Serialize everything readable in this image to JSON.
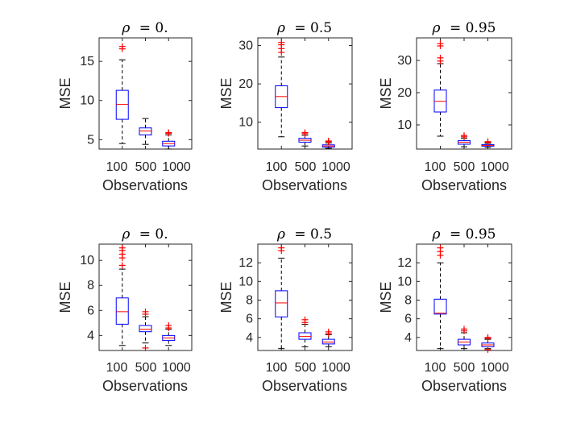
{
  "figure": {
    "colors": {
      "box": "#0000ff",
      "median": "#ff0000",
      "whisker": "#000000",
      "outlier": "#ff0000",
      "axes": "#262626"
    }
  },
  "chart_data": [
    {
      "type": "box",
      "title": "ρ = 0.",
      "title_symbol": "ρ",
      "title_value": "= 0.",
      "xlabel": "Observations",
      "ylabel": "MSE",
      "categories": [
        "100",
        "500",
        "1000"
      ],
      "ylim": [
        3.8,
        18
      ],
      "yticks": [
        5,
        10,
        15
      ],
      "grid": false,
      "boxes": [
        {
          "q1": 7.6,
          "median": 9.5,
          "q3": 11.3,
          "whisker_low": 4.5,
          "whisker_high": 15.2,
          "outliers": [
            16.6,
            16.9
          ]
        },
        {
          "q1": 5.6,
          "median": 6.1,
          "q3": 6.5,
          "whisker_low": 4.4,
          "whisker_high": 7.7,
          "outliers": []
        },
        {
          "q1": 4.2,
          "median": 4.5,
          "q3": 4.8,
          "whisker_low": 3.8,
          "whisker_high": 5.6,
          "outliers": [
            5.8,
            5.9
          ]
        }
      ]
    },
    {
      "type": "box",
      "title": "ρ = 0.5",
      "title_symbol": "ρ",
      "title_value": "= 0.5",
      "xlabel": "Observations",
      "ylabel": "MSE",
      "categories": [
        "100",
        "500",
        "1000"
      ],
      "ylim": [
        3,
        32
      ],
      "yticks": [
        10,
        20,
        30
      ],
      "grid": false,
      "boxes": [
        {
          "q1": 13.8,
          "median": 16.7,
          "q3": 19.5,
          "whisker_low": 6.2,
          "whisker_high": 27.0,
          "outliers": [
            28.2,
            29.2,
            30.2,
            30.8
          ]
        },
        {
          "q1": 4.8,
          "median": 5.3,
          "q3": 5.8,
          "whisker_low": 3.8,
          "whisker_high": 6.6,
          "outliers": [
            7.0,
            7.3
          ]
        },
        {
          "q1": 3.5,
          "median": 3.8,
          "q3": 4.1,
          "whisker_low": 3.2,
          "whisker_high": 4.6,
          "outliers": [
            4.9,
            5.1
          ]
        }
      ]
    },
    {
      "type": "box",
      "title": "ρ = 0.95",
      "title_symbol": "ρ",
      "title_value": "= 0.95",
      "xlabel": "Observations",
      "ylabel": "MSE",
      "categories": [
        "100",
        "500",
        "1000"
      ],
      "ylim": [
        2.5,
        37
      ],
      "yticks": [
        10,
        20,
        30
      ],
      "grid": false,
      "boxes": [
        {
          "q1": 14.0,
          "median": 17.3,
          "q3": 20.8,
          "whisker_low": 6.5,
          "whisker_high": 29.0,
          "outliers": [
            29.8,
            30.8,
            34.5,
            35.2
          ]
        },
        {
          "q1": 4.0,
          "median": 4.6,
          "q3": 5.1,
          "whisker_low": 3.2,
          "whisker_high": 5.9,
          "outliers": [
            6.3,
            6.7
          ]
        },
        {
          "q1": 3.4,
          "median": 3.6,
          "q3": 3.9,
          "whisker_low": 3.0,
          "whisker_high": 4.3,
          "outliers": [
            4.6,
            4.8
          ]
        }
      ]
    },
    {
      "type": "box",
      "title": "ρ = 0.",
      "title_symbol": "ρ",
      "title_value": "= 0.",
      "xlabel": "Observations",
      "ylabel": "MSE",
      "categories": [
        "100",
        "500",
        "1000"
      ],
      "ylim": [
        2.8,
        11.3
      ],
      "yticks": [
        4,
        6,
        8,
        10
      ],
      "grid": false,
      "boxes": [
        {
          "q1": 4.9,
          "median": 5.9,
          "q3": 7.0,
          "whisker_low": 3.2,
          "whisker_high": 9.3,
          "outliers": [
            9.6,
            10.2,
            10.5,
            10.8,
            11.0
          ]
        },
        {
          "q1": 4.3,
          "median": 4.5,
          "q3": 4.8,
          "whisker_low": 3.4,
          "whisker_high": 5.5,
          "outliers": [
            3.0,
            5.7,
            5.9
          ]
        },
        {
          "q1": 3.6,
          "median": 3.8,
          "q3": 4.0,
          "whisker_low": 3.2,
          "whisker_high": 4.5,
          "outliers": [
            4.6,
            4.8
          ]
        }
      ]
    },
    {
      "type": "box",
      "title": "ρ = 0.5",
      "title_symbol": "ρ",
      "title_value": "= 0.5",
      "xlabel": "Observations",
      "ylabel": "MSE",
      "categories": [
        "100",
        "500",
        "1000"
      ],
      "ylim": [
        2.6,
        14
      ],
      "yticks": [
        4,
        6,
        8,
        10,
        12
      ],
      "grid": false,
      "boxes": [
        {
          "q1": 6.2,
          "median": 7.7,
          "q3": 9.0,
          "whisker_low": 2.8,
          "whisker_high": 12.5,
          "outliers": [
            13.3,
            13.6
          ]
        },
        {
          "q1": 3.8,
          "median": 4.1,
          "q3": 4.5,
          "whisker_low": 3.0,
          "whisker_high": 5.4,
          "outliers": [
            5.6,
            5.9
          ]
        },
        {
          "q1": 3.3,
          "median": 3.5,
          "q3": 3.8,
          "whisker_low": 3.0,
          "whisker_high": 4.3,
          "outliers": [
            4.4,
            4.6
          ]
        }
      ]
    },
    {
      "type": "box",
      "title": "ρ = 0.95",
      "title_symbol": "ρ",
      "title_value": "= 0.95",
      "xlabel": "Observations",
      "ylabel": "MSE",
      "categories": [
        "100",
        "500",
        "1000"
      ],
      "ylim": [
        2.6,
        14
      ],
      "yticks": [
        4,
        6,
        8,
        10,
        12
      ],
      "grid": false,
      "boxes": [
        {
          "q1": 6.5,
          "median": 6.6,
          "q3": 8.1,
          "whisker_low": 2.8,
          "whisker_high": 12.0,
          "outliers": [
            12.8,
            13.2,
            13.6
          ]
        },
        {
          "q1": 3.2,
          "median": 3.5,
          "q3": 3.8,
          "whisker_low": 2.8,
          "whisker_high": 4.5,
          "outliers": [
            4.7,
            4.9
          ]
        },
        {
          "q1": 3.0,
          "median": 3.2,
          "q3": 3.4,
          "whisker_low": 2.8,
          "whisker_high": 3.8,
          "outliers": [
            2.7,
            3.9,
            4.0
          ]
        }
      ]
    }
  ]
}
